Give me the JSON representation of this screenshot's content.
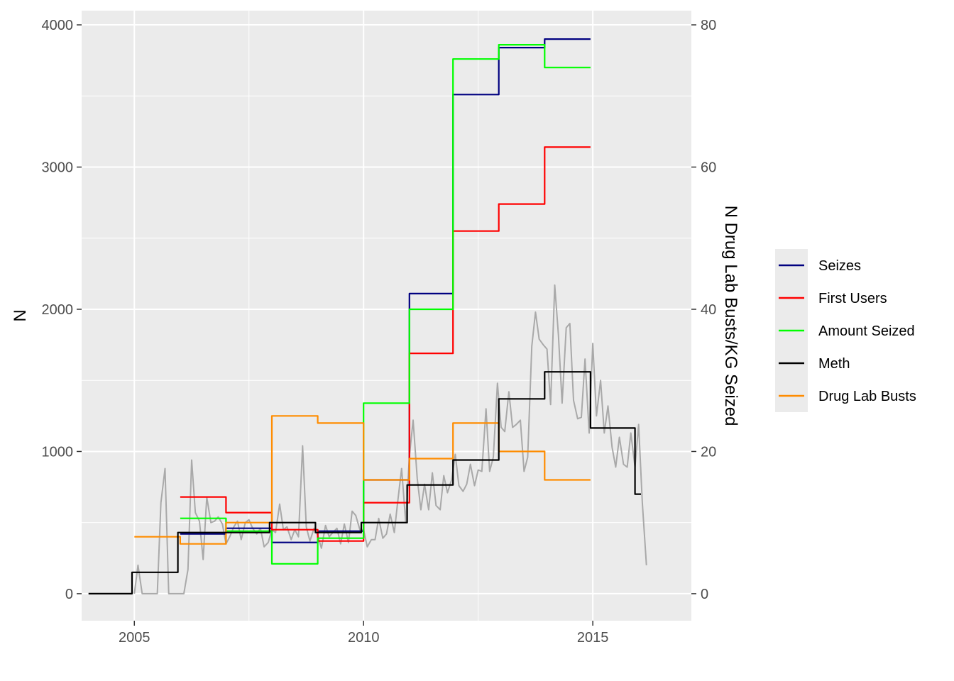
{
  "chart_data": {
    "type": "line",
    "ylabel": "N",
    "y2label": "N Drug Lab Busts/KG Seized",
    "xlim": [
      2003.85,
      2017.15
    ],
    "ylim": [
      -190,
      4100
    ],
    "y2lim": [
      -3.8,
      82
    ],
    "x_ticks": [
      2005,
      2010,
      2015
    ],
    "x_tick_labels": [
      "2005",
      "2010",
      "2015"
    ],
    "y_ticks": [
      0,
      1000,
      2000,
      3000,
      4000
    ],
    "y_tick_labels": [
      "0",
      "1000",
      "2000",
      "3000",
      "4000"
    ],
    "y2_ticks": [
      0,
      20,
      40,
      60,
      80
    ],
    "y2_tick_labels": [
      "0",
      "20",
      "40",
      "60",
      "80"
    ],
    "grid": true,
    "legend_position": "right",
    "legend": [
      {
        "name": "Seizes",
        "color": "#000080"
      },
      {
        "name": "First Users",
        "color": "#ff0000"
      },
      {
        "name": "Amount Seized",
        "color": "#00ff00"
      },
      {
        "name": "Meth",
        "color": "#000000"
      },
      {
        "name": "Drug Lab Busts",
        "color": "#ff8c00"
      }
    ],
    "series": [
      {
        "name": "Monthly count",
        "axis": "left",
        "color": "#a9a9a9",
        "x": [
          2005.0,
          2005.08,
          2005.17,
          2005.25,
          2005.33,
          2005.42,
          2005.5,
          2005.58,
          2005.67,
          2005.75,
          2005.83,
          2005.92,
          2006.0,
          2006.08,
          2006.17,
          2006.25,
          2006.33,
          2006.42,
          2006.5,
          2006.58,
          2006.67,
          2006.75,
          2006.83,
          2006.92,
          2007.0,
          2007.08,
          2007.17,
          2007.25,
          2007.33,
          2007.42,
          2007.5,
          2007.58,
          2007.67,
          2007.75,
          2007.83,
          2007.92,
          2008.0,
          2008.08,
          2008.17,
          2008.25,
          2008.33,
          2008.42,
          2008.5,
          2008.58,
          2008.67,
          2008.75,
          2008.83,
          2008.92,
          2009.0,
          2009.08,
          2009.17,
          2009.25,
          2009.33,
          2009.42,
          2009.5,
          2009.58,
          2009.67,
          2009.75,
          2009.83,
          2009.92,
          2010.0,
          2010.08,
          2010.17,
          2010.25,
          2010.33,
          2010.42,
          2010.5,
          2010.58,
          2010.67,
          2010.75,
          2010.83,
          2010.92,
          2011.0,
          2011.08,
          2011.17,
          2011.25,
          2011.33,
          2011.42,
          2011.5,
          2011.58,
          2011.67,
          2011.75,
          2011.83,
          2011.92,
          2012.0,
          2012.08,
          2012.17,
          2012.25,
          2012.33,
          2012.42,
          2012.5,
          2012.58,
          2012.67,
          2012.75,
          2012.83,
          2012.92,
          2013.0,
          2013.08,
          2013.17,
          2013.25,
          2013.33,
          2013.42,
          2013.5,
          2013.58,
          2013.67,
          2013.75,
          2013.83,
          2013.92,
          2014.0,
          2014.08,
          2014.17,
          2014.25,
          2014.33,
          2014.42,
          2014.5,
          2014.58,
          2014.67,
          2014.75,
          2014.83,
          2014.92,
          2015.0,
          2015.08,
          2015.17,
          2015.25,
          2015.33,
          2015.42,
          2015.5,
          2015.58,
          2015.67,
          2015.75,
          2015.83,
          2015.92,
          2016.0,
          2016.08,
          2016.17
        ],
        "y": [
          0,
          200,
          0,
          0,
          0,
          0,
          0,
          640,
          880,
          0,
          0,
          0,
          0,
          0,
          170,
          940,
          570,
          510,
          240,
          680,
          500,
          510,
          540,
          490,
          350,
          400,
          470,
          510,
          380,
          500,
          520,
          460,
          420,
          460,
          330,
          360,
          450,
          430,
          630,
          450,
          470,
          380,
          450,
          400,
          1040,
          470,
          370,
          460,
          410,
          320,
          480,
          400,
          430,
          460,
          350,
          490,
          360,
          580,
          550,
          450,
          450,
          330,
          380,
          380,
          530,
          390,
          420,
          560,
          430,
          660,
          880,
          500,
          970,
          1220,
          810,
          590,
          770,
          590,
          850,
          620,
          590,
          830,
          710,
          800,
          980,
          760,
          720,
          770,
          910,
          760,
          870,
          860,
          1300,
          860,
          960,
          1480,
          1170,
          1140,
          1420,
          1170,
          1190,
          1220,
          860,
          960,
          1740,
          1980,
          1790,
          1750,
          1720,
          1330,
          2170,
          1820,
          1340,
          1870,
          1900,
          1360,
          1230,
          1240,
          1650,
          1130,
          1760,
          1250,
          1500,
          1130,
          1320,
          1030,
          890,
          1100,
          910,
          890,
          1130,
          890,
          1190,
          640,
          200
        ]
      },
      {
        "name": "Seizes",
        "axis": "left",
        "color": "#000080",
        "x": [
          2006.0,
          2007.0,
          2007.0,
          2008.0,
          2008.0,
          2009.0,
          2009.0,
          2010.0,
          2010.0,
          2011.0,
          2011.0,
          2011.95,
          2011.95,
          2012.95,
          2012.95,
          2013.95,
          2013.95,
          2014.95
        ],
        "y": [
          420,
          420,
          460,
          460,
          360,
          360,
          440,
          440,
          800,
          800,
          2110,
          2110,
          3510,
          3510,
          3840,
          3840,
          3900,
          3900
        ]
      },
      {
        "name": "First Users",
        "axis": "left",
        "color": "#ff0000",
        "x": [
          2006.0,
          2007.0,
          2007.0,
          2008.0,
          2008.0,
          2009.0,
          2009.0,
          2010.0,
          2010.0,
          2011.0,
          2011.0,
          2011.95,
          2011.95,
          2012.95,
          2012.95,
          2013.95,
          2013.95,
          2014.95
        ],
        "y": [
          680,
          680,
          570,
          570,
          450,
          450,
          370,
          370,
          640,
          640,
          1690,
          1690,
          2550,
          2550,
          2740,
          2740,
          3140,
          3140
        ]
      },
      {
        "name": "Amount Seized",
        "axis": "left",
        "color": "#00ff00",
        "x": [
          2006.0,
          2007.0,
          2007.0,
          2008.0,
          2008.0,
          2009.0,
          2009.0,
          2010.0,
          2010.0,
          2011.0,
          2011.0,
          2011.95,
          2011.95,
          2012.95,
          2012.95,
          2013.95,
          2013.95,
          2014.95
        ],
        "y": [
          530,
          530,
          440,
          440,
          210,
          210,
          390,
          390,
          1340,
          1340,
          2000,
          2000,
          3760,
          3760,
          3860,
          3860,
          3700,
          3700
        ]
      },
      {
        "name": "Drug Lab Busts",
        "axis": "right",
        "color": "#ff8c00",
        "x": [
          2005.0,
          2006.0,
          2006.0,
          2007.0,
          2007.0,
          2008.0,
          2008.0,
          2009.0,
          2009.0,
          2010.0,
          2010.0,
          2011.0,
          2011.0,
          2011.95,
          2011.95,
          2012.95,
          2012.95,
          2013.95,
          2013.95,
          2014.95
        ],
        "y": [
          8,
          8,
          7,
          7,
          10,
          10,
          25,
          25,
          24,
          24,
          16,
          16,
          19,
          19,
          24,
          24,
          20,
          20,
          16,
          16
        ]
      },
      {
        "name": "Meth",
        "axis": "right",
        "color": "#000000",
        "x": [
          2004.0,
          2004.95,
          2004.95,
          2005.95,
          2005.95,
          2006.95,
          2006.95,
          2007.95,
          2007.95,
          2008.95,
          2008.95,
          2009.95,
          2009.95,
          2010.95,
          2010.95,
          2011.95,
          2011.95,
          2012.95,
          2012.95,
          2013.95,
          2013.95,
          2014.95,
          2014.95,
          2015.92,
          2015.92,
          2016.05
        ],
        "y": [
          0,
          0,
          3,
          3,
          8.6,
          8.6,
          8.6,
          8.6,
          10,
          10,
          8.6,
          8.6,
          10,
          10,
          15.3,
          15.3,
          18.8,
          18.8,
          27.4,
          27.4,
          31.2,
          31.2,
          23.3,
          23.3,
          14,
          14
        ]
      }
    ]
  }
}
